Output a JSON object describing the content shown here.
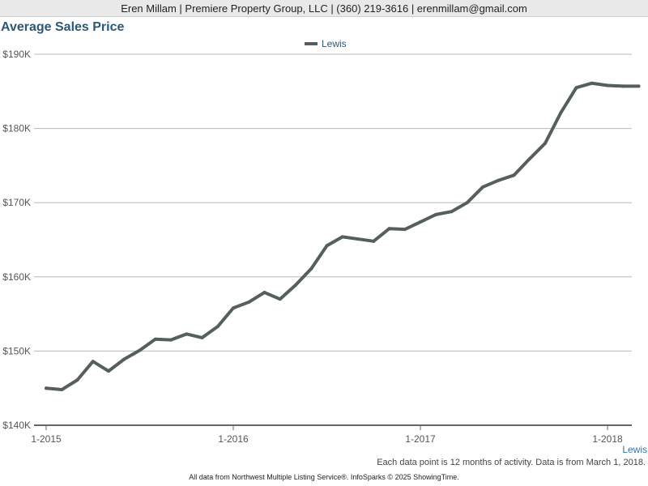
{
  "header": {
    "contact": "Eren Millam | Premiere Property Group, LLC | (360) 219-3616 | erenmillam@gmail.com"
  },
  "chart_data": {
    "type": "line",
    "title": "Average Sales Price",
    "xlabel": "",
    "ylabel": "",
    "ylim": [
      140000,
      190000
    ],
    "yticks": [
      {
        "value": 140000,
        "label": "$140K"
      },
      {
        "value": 150000,
        "label": "$150K"
      },
      {
        "value": 160000,
        "label": "$160K"
      },
      {
        "value": 170000,
        "label": "$170K"
      },
      {
        "value": 180000,
        "label": "$180K"
      },
      {
        "value": 190000,
        "label": "$190K"
      }
    ],
    "xticks": [
      "1-2015",
      "1-2016",
      "1-2017",
      "1-2018"
    ],
    "x": [
      "1-2015",
      "2-2015",
      "3-2015",
      "4-2015",
      "5-2015",
      "6-2015",
      "7-2015",
      "8-2015",
      "9-2015",
      "10-2015",
      "11-2015",
      "12-2015",
      "1-2016",
      "2-2016",
      "3-2016",
      "4-2016",
      "5-2016",
      "6-2016",
      "7-2016",
      "8-2016",
      "9-2016",
      "10-2016",
      "11-2016",
      "12-2016",
      "1-2017",
      "2-2017",
      "3-2017",
      "4-2017",
      "5-2017",
      "6-2017",
      "7-2017",
      "8-2017",
      "9-2017",
      "10-2017",
      "11-2017",
      "12-2017",
      "1-2018",
      "2-2018",
      "3-2018"
    ],
    "grid": true,
    "legend": "top-center",
    "series": [
      {
        "name": "Lewis",
        "color": "#555f5f",
        "values": [
          145000,
          144800,
          146100,
          148600,
          147300,
          148900,
          150100,
          151600,
          151500,
          152300,
          151800,
          153300,
          155800,
          156600,
          157900,
          157000,
          158900,
          161100,
          164200,
          165400,
          165100,
          164800,
          166500,
          166400,
          167400,
          168400,
          168800,
          170000,
          172100,
          173000,
          173700,
          175900,
          178000,
          182100,
          185500,
          186100,
          185800,
          185700,
          185700
        ]
      }
    ]
  },
  "region_label": "Lewis",
  "note": "Each data point is 12 months of activity. Data is from March 1, 2018.",
  "footer": "All data from Northwest Multiple Listing Service®. InfoSparks © 2025 ShowingTime."
}
